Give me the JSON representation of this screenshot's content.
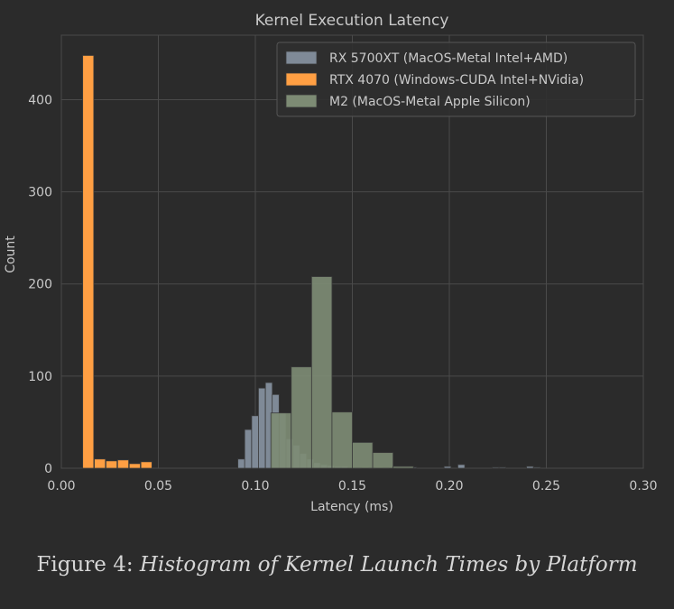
{
  "caption": {
    "label": "Figure 4:",
    "text": "Histogram of Kernel Launch Times by Platform"
  },
  "colors": {
    "background": "#2b2b2b",
    "grid": "#4a4a4a",
    "text": "#c9c9c9",
    "rx5700xt": "#7f8a97",
    "rtx4070": "#ff9f43",
    "m2": "#7d8b74"
  },
  "chart_data": {
    "type": "bar",
    "title": "Kernel Execution Latency",
    "xlabel": "Latency (ms)",
    "ylabel": "Count",
    "xlim": [
      0.0,
      0.3
    ],
    "ylim": [
      0,
      470
    ],
    "xticks": [
      "0.00",
      "0.05",
      "0.10",
      "0.15",
      "0.20",
      "0.25",
      "0.30"
    ],
    "yticks": [
      "0",
      "100",
      "200",
      "300",
      "400"
    ],
    "xtick_values": [
      0.0,
      0.05,
      0.1,
      0.15,
      0.2,
      0.25,
      0.3
    ],
    "ytick_values": [
      0,
      100,
      200,
      300,
      400
    ],
    "grid": true,
    "legend_position": "top-right",
    "series": [
      {
        "name": "RX 5700XT (MacOS-Metal Intel+AMD)",
        "color": "#7f8a97",
        "bin_width": 0.00355,
        "bins": [
          [
            0.091,
            10
          ],
          [
            0.0945,
            42
          ],
          [
            0.0981,
            57
          ],
          [
            0.1016,
            87
          ],
          [
            0.1052,
            93
          ],
          [
            0.1087,
            80
          ],
          [
            0.1123,
            60
          ],
          [
            0.1158,
            32
          ],
          [
            0.1194,
            25
          ],
          [
            0.1229,
            16
          ],
          [
            0.1265,
            10
          ],
          [
            0.13,
            6
          ],
          [
            0.1336,
            4
          ],
          [
            0.1371,
            3
          ],
          [
            0.1407,
            2
          ],
          [
            0.1442,
            2
          ],
          [
            0.1478,
            1
          ],
          [
            0.1548,
            1
          ],
          [
            0.1619,
            1
          ],
          [
            0.169,
            1
          ],
          [
            0.1796,
            1
          ],
          [
            0.1973,
            2
          ],
          [
            0.2044,
            4
          ],
          [
            0.2221,
            1
          ],
          [
            0.2256,
            1
          ],
          [
            0.2398,
            2
          ],
          [
            0.2434,
            1
          ]
        ]
      },
      {
        "name": "RTX 4070 (Windows-CUDA Intel+NVidia)",
        "color": "#ff9f43",
        "bin_width": 0.0057,
        "bins": [
          [
            0.011,
            448
          ],
          [
            0.017,
            10
          ],
          [
            0.023,
            8
          ],
          [
            0.029,
            9
          ],
          [
            0.035,
            5
          ],
          [
            0.041,
            7
          ]
        ]
      },
      {
        "name": "M2 (MacOS-Metal Apple Silicon)",
        "color": "#7d8b74",
        "bin_width": 0.0105,
        "bins": [
          [
            0.108,
            60
          ],
          [
            0.1185,
            110
          ],
          [
            0.129,
            208
          ],
          [
            0.1395,
            61
          ],
          [
            0.15,
            28
          ],
          [
            0.1605,
            17
          ],
          [
            0.171,
            2
          ]
        ]
      }
    ]
  }
}
